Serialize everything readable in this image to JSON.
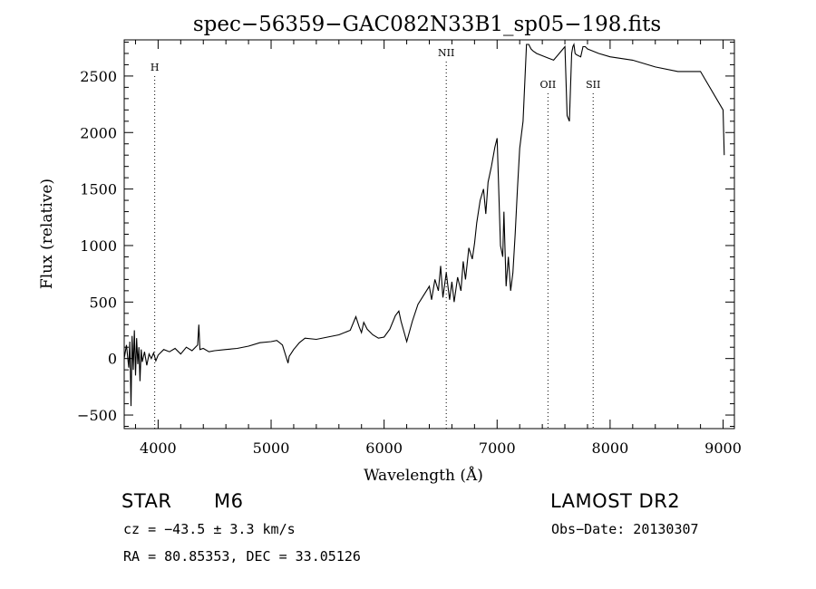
{
  "chart_data": {
    "type": "line",
    "title": "spec−56359−GAC082N33B1_sp05−198.fits",
    "xlabel": "Wavelength (Å)",
    "ylabel": "Flux (relative)",
    "xlim": [
      3700,
      9100
    ],
    "ylim": [
      -620,
      2820
    ],
    "x_ticks": [
      4000,
      5000,
      6000,
      7000,
      8000,
      9000
    ],
    "y_ticks": [
      -500,
      0,
      500,
      1000,
      1500,
      2000,
      2500
    ],
    "grid": false,
    "line_color": "#000000",
    "series": [
      {
        "x": [
          3700,
          3720,
          3740,
          3750,
          3760,
          3770,
          3780,
          3790,
          3800,
          3810,
          3820,
          3830,
          3840,
          3850,
          3860,
          3880,
          3900,
          3920,
          3940,
          3960,
          3980,
          4000,
          4050,
          4100,
          4150,
          4200,
          4250,
          4300,
          4350,
          4360,
          4370,
          4400,
          4450,
          4500,
          4600,
          4700,
          4800,
          4900,
          5000,
          5050,
          5100,
          5150,
          5160,
          5180,
          5200,
          5250,
          5300,
          5400,
          5500,
          5600,
          5700,
          5750,
          5780,
          5800,
          5820,
          5850,
          5900,
          5950,
          6000,
          6050,
          6100,
          6130,
          6150,
          6200,
          6250,
          6300,
          6350,
          6400,
          6420,
          6450,
          6480,
          6500,
          6520,
          6550,
          6580,
          6600,
          6620,
          6650,
          6680,
          6700,
          6720,
          6750,
          6780,
          6800,
          6820,
          6850,
          6880,
          6900,
          6920,
          6950,
          6980,
          7000,
          7030,
          7050,
          7060,
          7080,
          7100,
          7120,
          7140,
          7160,
          7180,
          7200,
          7230,
          7260,
          7280,
          7290,
          7300,
          7320,
          7350,
          7400,
          7450,
          7500,
          7550,
          7600,
          7620,
          7640,
          7660,
          7670,
          7680,
          7690,
          7700,
          7720,
          7740,
          7760,
          7780,
          7800,
          7850,
          7900,
          8000,
          8200,
          8400,
          8600,
          8800,
          9000,
          9010
        ],
        "values": [
          0,
          120,
          -80,
          150,
          -420,
          200,
          -100,
          250,
          -150,
          180,
          -50,
          100,
          -200,
          80,
          -30,
          60,
          -60,
          40,
          0,
          50,
          -20,
          30,
          80,
          60,
          90,
          40,
          100,
          70,
          120,
          300,
          80,
          90,
          60,
          70,
          80,
          90,
          110,
          140,
          150,
          160,
          120,
          -40,
          20,
          50,
          80,
          140,
          180,
          170,
          190,
          210,
          250,
          370,
          280,
          230,
          320,
          260,
          210,
          180,
          190,
          260,
          380,
          420,
          330,
          150,
          330,
          480,
          560,
          640,
          520,
          700,
          600,
          820,
          540,
          760,
          520,
          680,
          500,
          720,
          600,
          860,
          700,
          980,
          880,
          1020,
          1200,
          1400,
          1500,
          1280,
          1560,
          1700,
          1870,
          1950,
          1000,
          900,
          1300,
          640,
          900,
          600,
          760,
          1100,
          1500,
          1860,
          2100,
          2780,
          2780,
          2760,
          2740,
          2720,
          2700,
          2680,
          2660,
          2640,
          2700,
          2760,
          2150,
          2100,
          2700,
          2760,
          2780,
          2700,
          2690,
          2680,
          2670,
          2760,
          2760,
          2740,
          2720,
          2700,
          2670,
          2640,
          2580,
          2540,
          2540,
          2200,
          1800
        ]
      }
    ],
    "annotations": [
      {
        "label": "H",
        "x": 3970
      },
      {
        "label": "NII",
        "x": 6550
      },
      {
        "label": "OII",
        "x": 7450
      },
      {
        "label": "SII",
        "x": 7850
      }
    ]
  },
  "info": {
    "star_class": "STAR",
    "subclass": "M6",
    "survey": "LAMOST DR2",
    "cz_text": "cz = −43.5 ± 3.3 km/s",
    "obs_date_text": "Obs−Date: 20130307",
    "coords_text": "RA =  80.85353, DEC =  33.05126"
  }
}
